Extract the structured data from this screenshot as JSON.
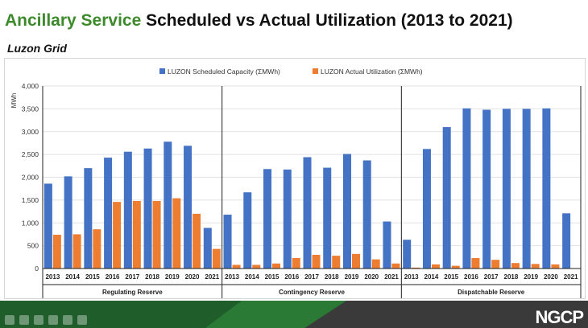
{
  "header": {
    "title_accent": "Ancillary Service",
    "title_rest": " Scheduled vs Actual Utilization (2013 to 2021)",
    "subtitle": "Luzon Grid"
  },
  "footer": {
    "logo_text": "NGCP",
    "controls": [
      "prev-icon",
      "play-icon",
      "next-icon",
      "copy-icon",
      "edit-icon",
      "more-icon"
    ]
  },
  "chart_data": {
    "type": "bar",
    "ylabel": "MWh",
    "ylim": [
      0,
      4000
    ],
    "yticks": [
      0,
      500,
      1000,
      1500,
      2000,
      2500,
      3000,
      3500,
      4000
    ],
    "ytick_labels": [
      "0",
      "500",
      "1,000",
      "1,500",
      "2,000",
      "2,500",
      "3,000",
      "3,500",
      "4,000"
    ],
    "legend_position": "top-center",
    "grid": true,
    "series_colors": [
      "#4472c4",
      "#ed7d31"
    ],
    "groups": [
      {
        "name": "Regulating Reserve",
        "categories": [
          "2013",
          "2014",
          "2015",
          "2016",
          "2017",
          "2018",
          "2019",
          "2020",
          "2021"
        ],
        "series": [
          {
            "name": "LUZON Scheduled Capacity (ΣMWh)",
            "values": [
              1860,
              2020,
              2200,
              2430,
              2560,
              2630,
              2780,
              2690,
              890
            ]
          },
          {
            "name": "LUZON Actual Utilization (ΣMWh)",
            "values": [
              740,
              750,
              860,
              1460,
              1480,
              1480,
              1540,
              1200,
              430
            ]
          }
        ]
      },
      {
        "name": "Contingency Reserve",
        "categories": [
          "2013",
          "2014",
          "2015",
          "2016",
          "2017",
          "2018",
          "2019",
          "2020",
          "2021"
        ],
        "series": [
          {
            "name": "LUZON Scheduled Capacity (ΣMWh)",
            "values": [
              1180,
              1670,
              2180,
              2170,
              2440,
              2210,
              2510,
              2370,
              1030
            ]
          },
          {
            "name": "LUZON Actual Utilization (ΣMWh)",
            "values": [
              80,
              80,
              110,
              230,
              300,
              280,
              320,
              200,
              110
            ]
          }
        ]
      },
      {
        "name": "Dispatchable Reserve",
        "categories": [
          "2013",
          "2014",
          "2015",
          "2016",
          "2017",
          "2018",
          "2019",
          "2020",
          "2021"
        ],
        "series": [
          {
            "name": "LUZON Scheduled Capacity (ΣMWh)",
            "values": [
              630,
              2620,
              3100,
              3510,
              3480,
              3500,
              3500,
              3510,
              1210
            ]
          },
          {
            "name": "LUZON Actual Utilization (ΣMWh)",
            "values": [
              20,
              90,
              60,
              230,
              190,
              120,
              100,
              90,
              0
            ]
          }
        ]
      }
    ]
  }
}
